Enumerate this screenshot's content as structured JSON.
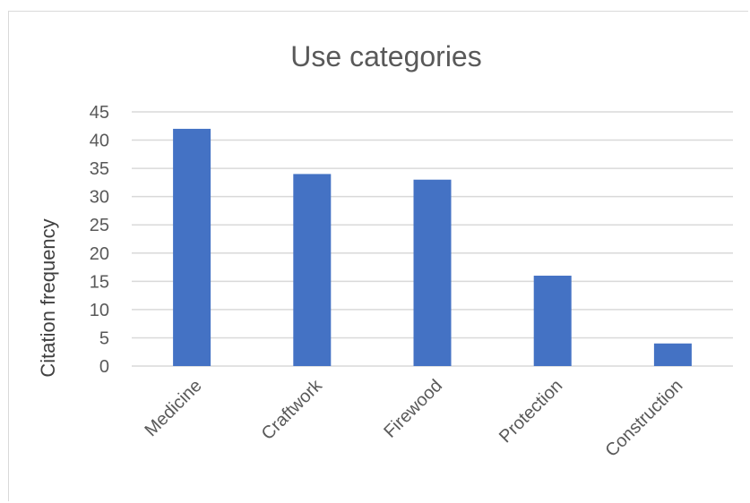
{
  "chart_data": {
    "type": "bar",
    "title": "Use categories",
    "xlabel": "",
    "ylabel": "Citation frequency",
    "categories": [
      "Medicine",
      "Craftwork",
      "Firewood",
      "Protection",
      "Construction"
    ],
    "values": [
      42,
      34,
      33,
      16,
      4
    ],
    "ylim": [
      0,
      45
    ],
    "yticks": [
      0,
      5,
      10,
      15,
      20,
      25,
      30,
      35,
      40,
      45
    ],
    "grid": true,
    "legend": "none",
    "bar_color": "#4472C4",
    "grid_color": "#d9d9d9",
    "text_color": "#595959"
  }
}
